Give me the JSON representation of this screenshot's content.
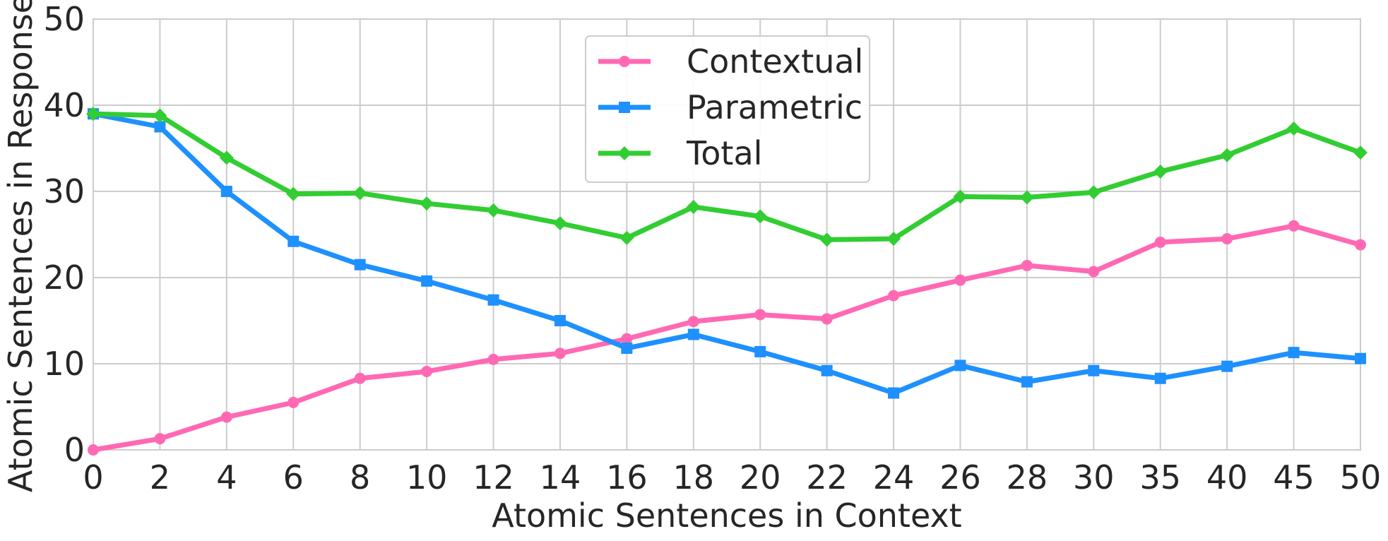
{
  "chart_data": {
    "type": "line",
    "categories": [
      "0",
      "2",
      "4",
      "6",
      "8",
      "10",
      "12",
      "14",
      "16",
      "18",
      "20",
      "22",
      "24",
      "26",
      "28",
      "30",
      "35",
      "40",
      "45",
      "50"
    ],
    "series": [
      {
        "name": "Contextual",
        "color": "#ff69b4",
        "marker": "circle",
        "values": [
          0.0,
          1.3,
          3.8,
          5.5,
          8.3,
          9.1,
          10.5,
          11.2,
          12.9,
          14.9,
          15.7,
          15.2,
          17.9,
          19.7,
          21.4,
          20.7,
          24.1,
          24.5,
          26.0,
          23.8
        ]
      },
      {
        "name": "Parametric",
        "color": "#1e90ff",
        "marker": "square",
        "values": [
          39.0,
          37.5,
          30.0,
          24.2,
          21.5,
          19.6,
          17.4,
          15.0,
          11.8,
          13.4,
          11.4,
          9.2,
          6.6,
          9.8,
          7.9,
          9.2,
          8.3,
          9.7,
          11.3,
          10.6
        ]
      },
      {
        "name": "Total",
        "color": "#32cd32",
        "marker": "diamond",
        "values": [
          39.0,
          38.8,
          33.9,
          29.7,
          29.8,
          28.6,
          27.8,
          26.3,
          24.6,
          28.2,
          27.1,
          24.4,
          24.5,
          29.4,
          29.3,
          29.9,
          32.3,
          34.2,
          37.3,
          34.5
        ]
      }
    ],
    "xlabel": "Atomic Sentences in Context",
    "ylabel": "Atomic Sentences in Response",
    "ylim": [
      0,
      50
    ],
    "yticks": [
      "0",
      "10",
      "20",
      "30",
      "40",
      "50"
    ],
    "grid": true,
    "legend_position": "top-center"
  }
}
